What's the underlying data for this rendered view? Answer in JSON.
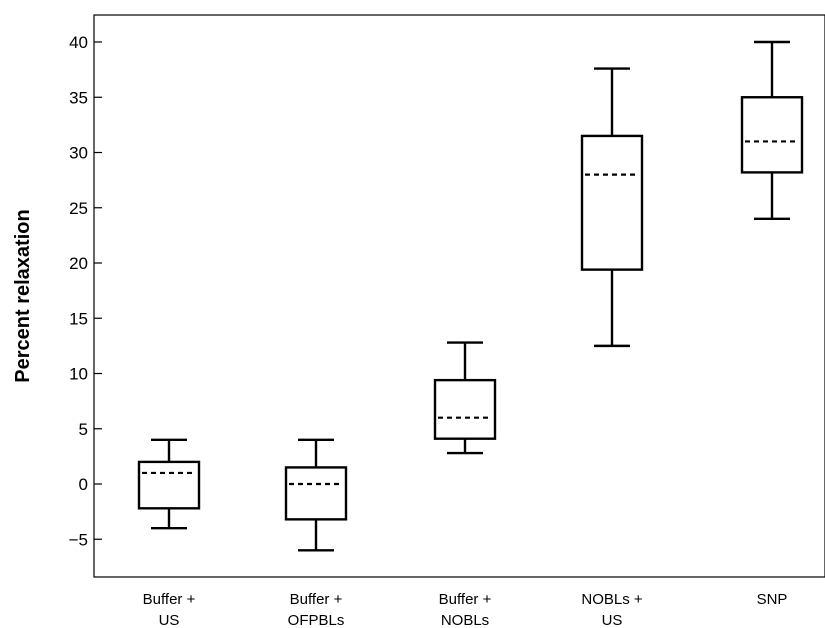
{
  "chart_data": {
    "type": "box",
    "title": "",
    "xlabel": "",
    "ylabel": "Percent relaxation",
    "ylim": [
      -8,
      42
    ],
    "yticks": [
      -5,
      0,
      5,
      10,
      15,
      20,
      25,
      30,
      35,
      40
    ],
    "ytick_labels": [
      "−5",
      "0",
      "5",
      "10",
      "15",
      "20",
      "25",
      "30",
      "35",
      "40"
    ],
    "grid": false,
    "legend": "none",
    "median_line_style": "dashed",
    "categories": [
      [
        "Buffer +",
        "US"
      ],
      [
        "Buffer +",
        "OFPBLs"
      ],
      [
        "Buffer +",
        "NOBLs"
      ],
      [
        "NOBLs +",
        "US"
      ],
      [
        "SNP"
      ]
    ],
    "boxes": [
      {
        "whisker_low": -4.0,
        "q1": -2.2,
        "median": 1.0,
        "q3": 2.0,
        "whisker_high": 4.0
      },
      {
        "whisker_low": -6.0,
        "q1": -3.2,
        "median": 0.0,
        "q3": 1.5,
        "whisker_high": 4.0
      },
      {
        "whisker_low": 2.8,
        "q1": 4.1,
        "median": 6.0,
        "q3": 9.4,
        "whisker_high": 12.8
      },
      {
        "whisker_low": 12.5,
        "q1": 19.4,
        "median": 28.0,
        "q3": 31.5,
        "whisker_high": 37.6
      },
      {
        "whisker_low": 24.0,
        "q1": 28.2,
        "median": 31.0,
        "q3": 35.0,
        "whisker_high": 40.0
      }
    ],
    "colors": {
      "line": "#000000",
      "box_fill": "#ffffff"
    }
  }
}
